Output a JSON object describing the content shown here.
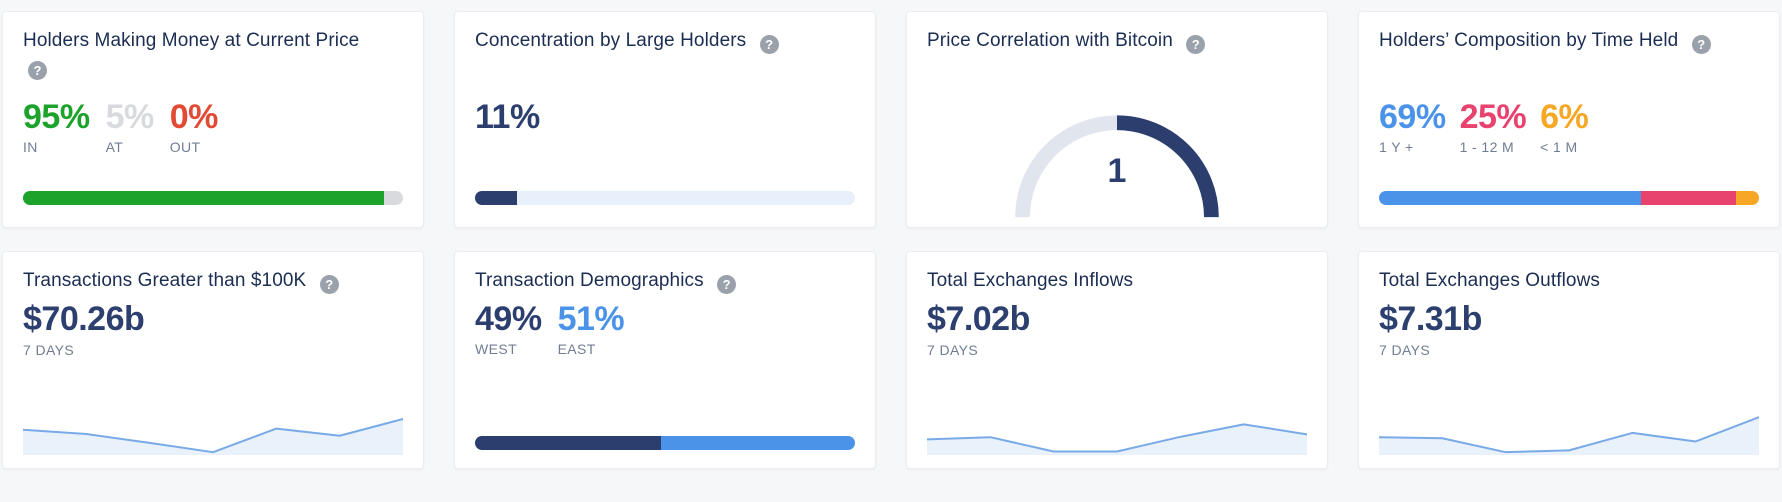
{
  "help_glyph": "?",
  "colors": {
    "page_bg": "#f6f7f8",
    "card_bg": "#ffffff",
    "title_navy": "#1b2d52",
    "value_navy": "#2b3e6e",
    "green": "#1da32c",
    "muted_gray": "#d8dadd",
    "red": "#e14b35",
    "blue": "#4b93e9",
    "pink": "#e8436e",
    "orange": "#f5a725",
    "label_gray": "#717d92",
    "bar_track_lightblue": "#e7f0fb",
    "spark_line": "#79aae8",
    "spark_fill": "#e9f1fa",
    "gauge_track": "#e0e5ee"
  },
  "cards": [
    {
      "title": "Holders Making Money at Current Price",
      "has_help": true,
      "stats": [
        {
          "value": "95%",
          "label": "IN",
          "color": "#1da32c"
        },
        {
          "value": "5%",
          "label": "AT",
          "color": "#d8dadd"
        },
        {
          "value": "0%",
          "label": "OUT",
          "color": "#e14b35"
        }
      ],
      "bar": [
        {
          "pct": 95,
          "color": "#1da32c"
        },
        {
          "pct": 5,
          "color": "#d8dadd"
        }
      ]
    },
    {
      "title": "Concentration by Large Holders",
      "has_help": true,
      "stats": [
        {
          "value": "11%",
          "label": "",
          "color": "#2b3e6e"
        }
      ],
      "bar": [
        {
          "pct": 11,
          "color": "#2b3e6e"
        },
        {
          "pct": 89,
          "color": "#e7f0fb"
        }
      ]
    },
    {
      "title": "Price Correlation with Bitcoin",
      "has_help": true,
      "gauge": {
        "value": "1",
        "min": -1,
        "max": 1
      }
    },
    {
      "title": "Holders’ Composition by Time Held",
      "has_help": true,
      "stats": [
        {
          "value": "69%",
          "label": "1 Y +",
          "color": "#4b93e9"
        },
        {
          "value": "25%",
          "label": "1 - 12 M",
          "color": "#e8436e"
        },
        {
          "value": "6%",
          "label": "< 1 M",
          "color": "#f5a725"
        }
      ],
      "bar": [
        {
          "pct": 69,
          "color": "#4b93e9"
        },
        {
          "pct": 25,
          "color": "#e8436e"
        },
        {
          "pct": 6,
          "color": "#f5a725"
        }
      ]
    },
    {
      "title": "Transactions Greater than $100K",
      "has_help": true,
      "value": "$70.26b",
      "period": "7 DAYS",
      "spark": [
        0.65,
        0.53,
        0.28,
        0.02,
        0.68,
        0.48,
        0.95
      ]
    },
    {
      "title": "Transaction Demographics",
      "has_help": true,
      "stats": [
        {
          "value": "49%",
          "label": "WEST",
          "color": "#2b3e6e"
        },
        {
          "value": "51%",
          "label": "EAST",
          "color": "#4b93e9"
        }
      ],
      "bar": [
        {
          "pct": 49,
          "color": "#2b3e6e"
        },
        {
          "pct": 51,
          "color": "#4b93e9"
        }
      ]
    },
    {
      "title": "Total Exchanges Inflows",
      "has_help": false,
      "value": "$7.02b",
      "period": "7 DAYS",
      "spark": [
        0.38,
        0.44,
        0.04,
        0.04,
        0.45,
        0.8,
        0.52
      ]
    },
    {
      "title": "Total Exchanges Outflows",
      "has_help": false,
      "value": "$7.31b",
      "period": "7 DAYS",
      "spark": [
        0.44,
        0.41,
        0.02,
        0.07,
        0.56,
        0.32,
        1.0
      ]
    }
  ]
}
